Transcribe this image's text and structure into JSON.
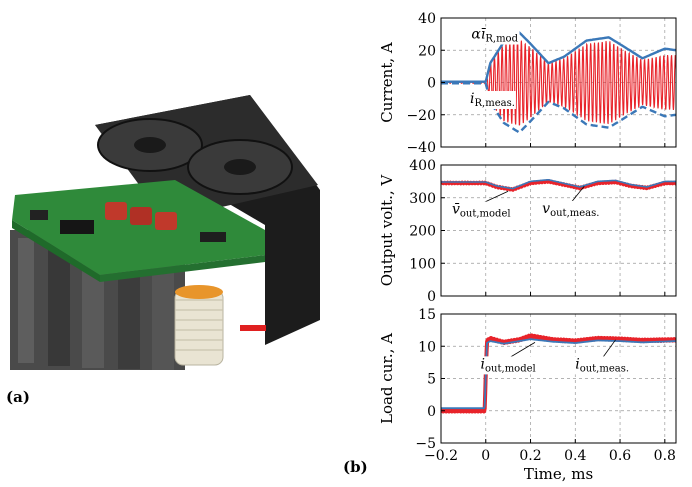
{
  "labels": {
    "panel_a": "(a)",
    "panel_b": "(b)"
  },
  "photo": {
    "description_icon": "power-converter-hardware-icon",
    "fan_color": "#2a2a2a",
    "pcb_color": "#2f8a3a",
    "core_color": "#4a4a4a",
    "capacitor_color": "#c0392b",
    "coil_color": "#f0ece0"
  },
  "chart_data": [
    {
      "type": "line",
      "ylabel": "Current, A",
      "xlim": [
        -0.2,
        0.85
      ],
      "ylim": [
        -40,
        40
      ],
      "yticks": [
        -40,
        -20,
        0,
        20,
        40
      ],
      "grid": true,
      "annotations": [
        {
          "text": "αī",
          "sub": "R,mod",
          "x": -0.02,
          "y": 30,
          "tx": 0.04,
          "ty": 31
        },
        {
          "text": "i",
          "sub": "R,meas.",
          "x": -0.06,
          "y": -12,
          "tx": 0.03,
          "ty": -9
        }
      ],
      "series": [
        {
          "role": "measured",
          "color": "#e8232a",
          "kind": "oscillation",
          "x": [
            -0.2,
            0.0,
            0.02,
            0.08,
            0.15,
            0.2,
            0.28,
            0.35,
            0.45,
            0.55,
            0.62,
            0.7,
            0.8,
            0.85
          ],
          "amp": [
            0.5,
            0.5,
            12,
            24,
            27,
            22,
            12,
            15,
            24,
            26,
            20,
            14,
            17,
            17
          ]
        },
        {
          "role": "model-envelope",
          "color": "#3b78b8",
          "x": [
            -0.2,
            0.0,
            0.02,
            0.08,
            0.15,
            0.2,
            0.28,
            0.35,
            0.45,
            0.55,
            0.62,
            0.7,
            0.8,
            0.85
          ],
          "upper": [
            0.5,
            0.5,
            12,
            25,
            31,
            24,
            12,
            16,
            26,
            28,
            22,
            15,
            21,
            20
          ],
          "lower": [
            -0.5,
            -0.5,
            -12,
            -25,
            -31,
            -24,
            -12,
            -16,
            -26,
            -28,
            -22,
            -15,
            -21,
            -20
          ]
        }
      ]
    },
    {
      "type": "line",
      "ylabel": "Output volt., V",
      "xlim": [
        -0.2,
        0.85
      ],
      "ylim": [
        0,
        400
      ],
      "yticks": [
        0,
        100,
        200,
        300,
        400
      ],
      "grid": true,
      "annotations": [
        {
          "text": "v̄",
          "sub": "out,model",
          "x": 0.1,
          "y": 320,
          "tx": -0.02,
          "ty": 270
        },
        {
          "text": "v",
          "sub": "out,meas.",
          "x": 0.44,
          "y": 335,
          "tx": 0.38,
          "ty": 272
        }
      ],
      "series": [
        {
          "role": "measured",
          "color": "#e8232a",
          "width": 3.2,
          "x": [
            -0.2,
            0.0,
            0.05,
            0.12,
            0.2,
            0.28,
            0.35,
            0.42,
            0.5,
            0.58,
            0.65,
            0.72,
            0.8,
            0.85
          ],
          "y": [
            345,
            345,
            333,
            325,
            345,
            350,
            340,
            330,
            345,
            348,
            336,
            330,
            345,
            345
          ]
        },
        {
          "role": "model",
          "color": "#3b78b8",
          "width": 1.6,
          "x": [
            -0.2,
            0.0,
            0.05,
            0.12,
            0.2,
            0.28,
            0.35,
            0.42,
            0.5,
            0.58,
            0.65,
            0.72,
            0.8,
            0.85
          ],
          "y": [
            348,
            348,
            336,
            328,
            350,
            355,
            344,
            333,
            350,
            353,
            340,
            333,
            350,
            350
          ]
        }
      ]
    },
    {
      "type": "line",
      "ylabel": "Load cur., A",
      "xlabel": "Time, ms",
      "xlim": [
        -0.2,
        0.85
      ],
      "ylim": [
        -5,
        15
      ],
      "yticks": [
        -5,
        0,
        5,
        10,
        15
      ],
      "xticks": [
        -0.2,
        0,
        0.2,
        0.4,
        0.6,
        0.8
      ],
      "grid": true,
      "annotations": [
        {
          "text": "i",
          "sub": "out,model",
          "x": 0.22,
          "y": 10.6,
          "tx": 0.1,
          "ty": 7.5
        },
        {
          "text": "i",
          "sub": "out,meas.",
          "x": 0.58,
          "y": 11.0,
          "tx": 0.52,
          "ty": 7.5
        }
      ],
      "series": [
        {
          "role": "measured",
          "color": "#e8232a",
          "width": 4,
          "x": [
            -0.2,
            -0.005,
            0.005,
            0.02,
            0.08,
            0.15,
            0.2,
            0.3,
            0.4,
            0.5,
            0.6,
            0.7,
            0.85
          ],
          "y": [
            0,
            0,
            10.8,
            11.2,
            10.6,
            11.0,
            11.6,
            11.0,
            10.8,
            11.2,
            11.1,
            10.9,
            11.0
          ]
        },
        {
          "role": "model",
          "color": "#3b78b8",
          "width": 1.8,
          "x": [
            -0.2,
            -0.005,
            0.005,
            0.02,
            0.08,
            0.15,
            0.2,
            0.3,
            0.4,
            0.5,
            0.6,
            0.7,
            0.85
          ],
          "y": [
            0.4,
            0.4,
            10.5,
            10.8,
            10.4,
            10.8,
            11.1,
            10.7,
            10.5,
            10.9,
            10.8,
            10.6,
            10.8
          ]
        }
      ]
    }
  ]
}
